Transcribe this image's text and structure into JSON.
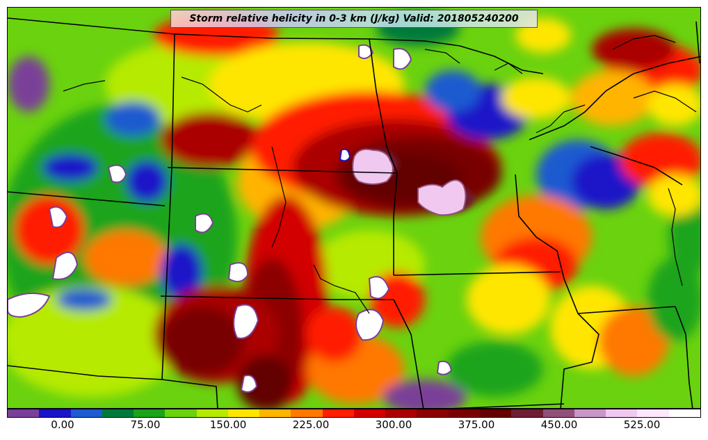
{
  "title": "Storm relative helicity in 0-3 km (J/kg) Valid: 201805240200",
  "colorbar": {
    "colors": [
      "#7a3f98",
      "#1a14c8",
      "#1e5ad0",
      "#007a3a",
      "#1aa41a",
      "#6ad20e",
      "#b6ea00",
      "#ffe600",
      "#ffb400",
      "#ff7800",
      "#ff1e00",
      "#d20000",
      "#aa0000",
      "#8c0000",
      "#780000",
      "#640000",
      "#6e1e32",
      "#915078",
      "#c896c8",
      "#f0c8f0",
      "#ffe6ff",
      "#ffffff"
    ],
    "tick_labels": [
      "0.00",
      "75.00",
      "150.00",
      "225.00",
      "300.00",
      "375.00",
      "450.00",
      "525.00"
    ]
  }
}
